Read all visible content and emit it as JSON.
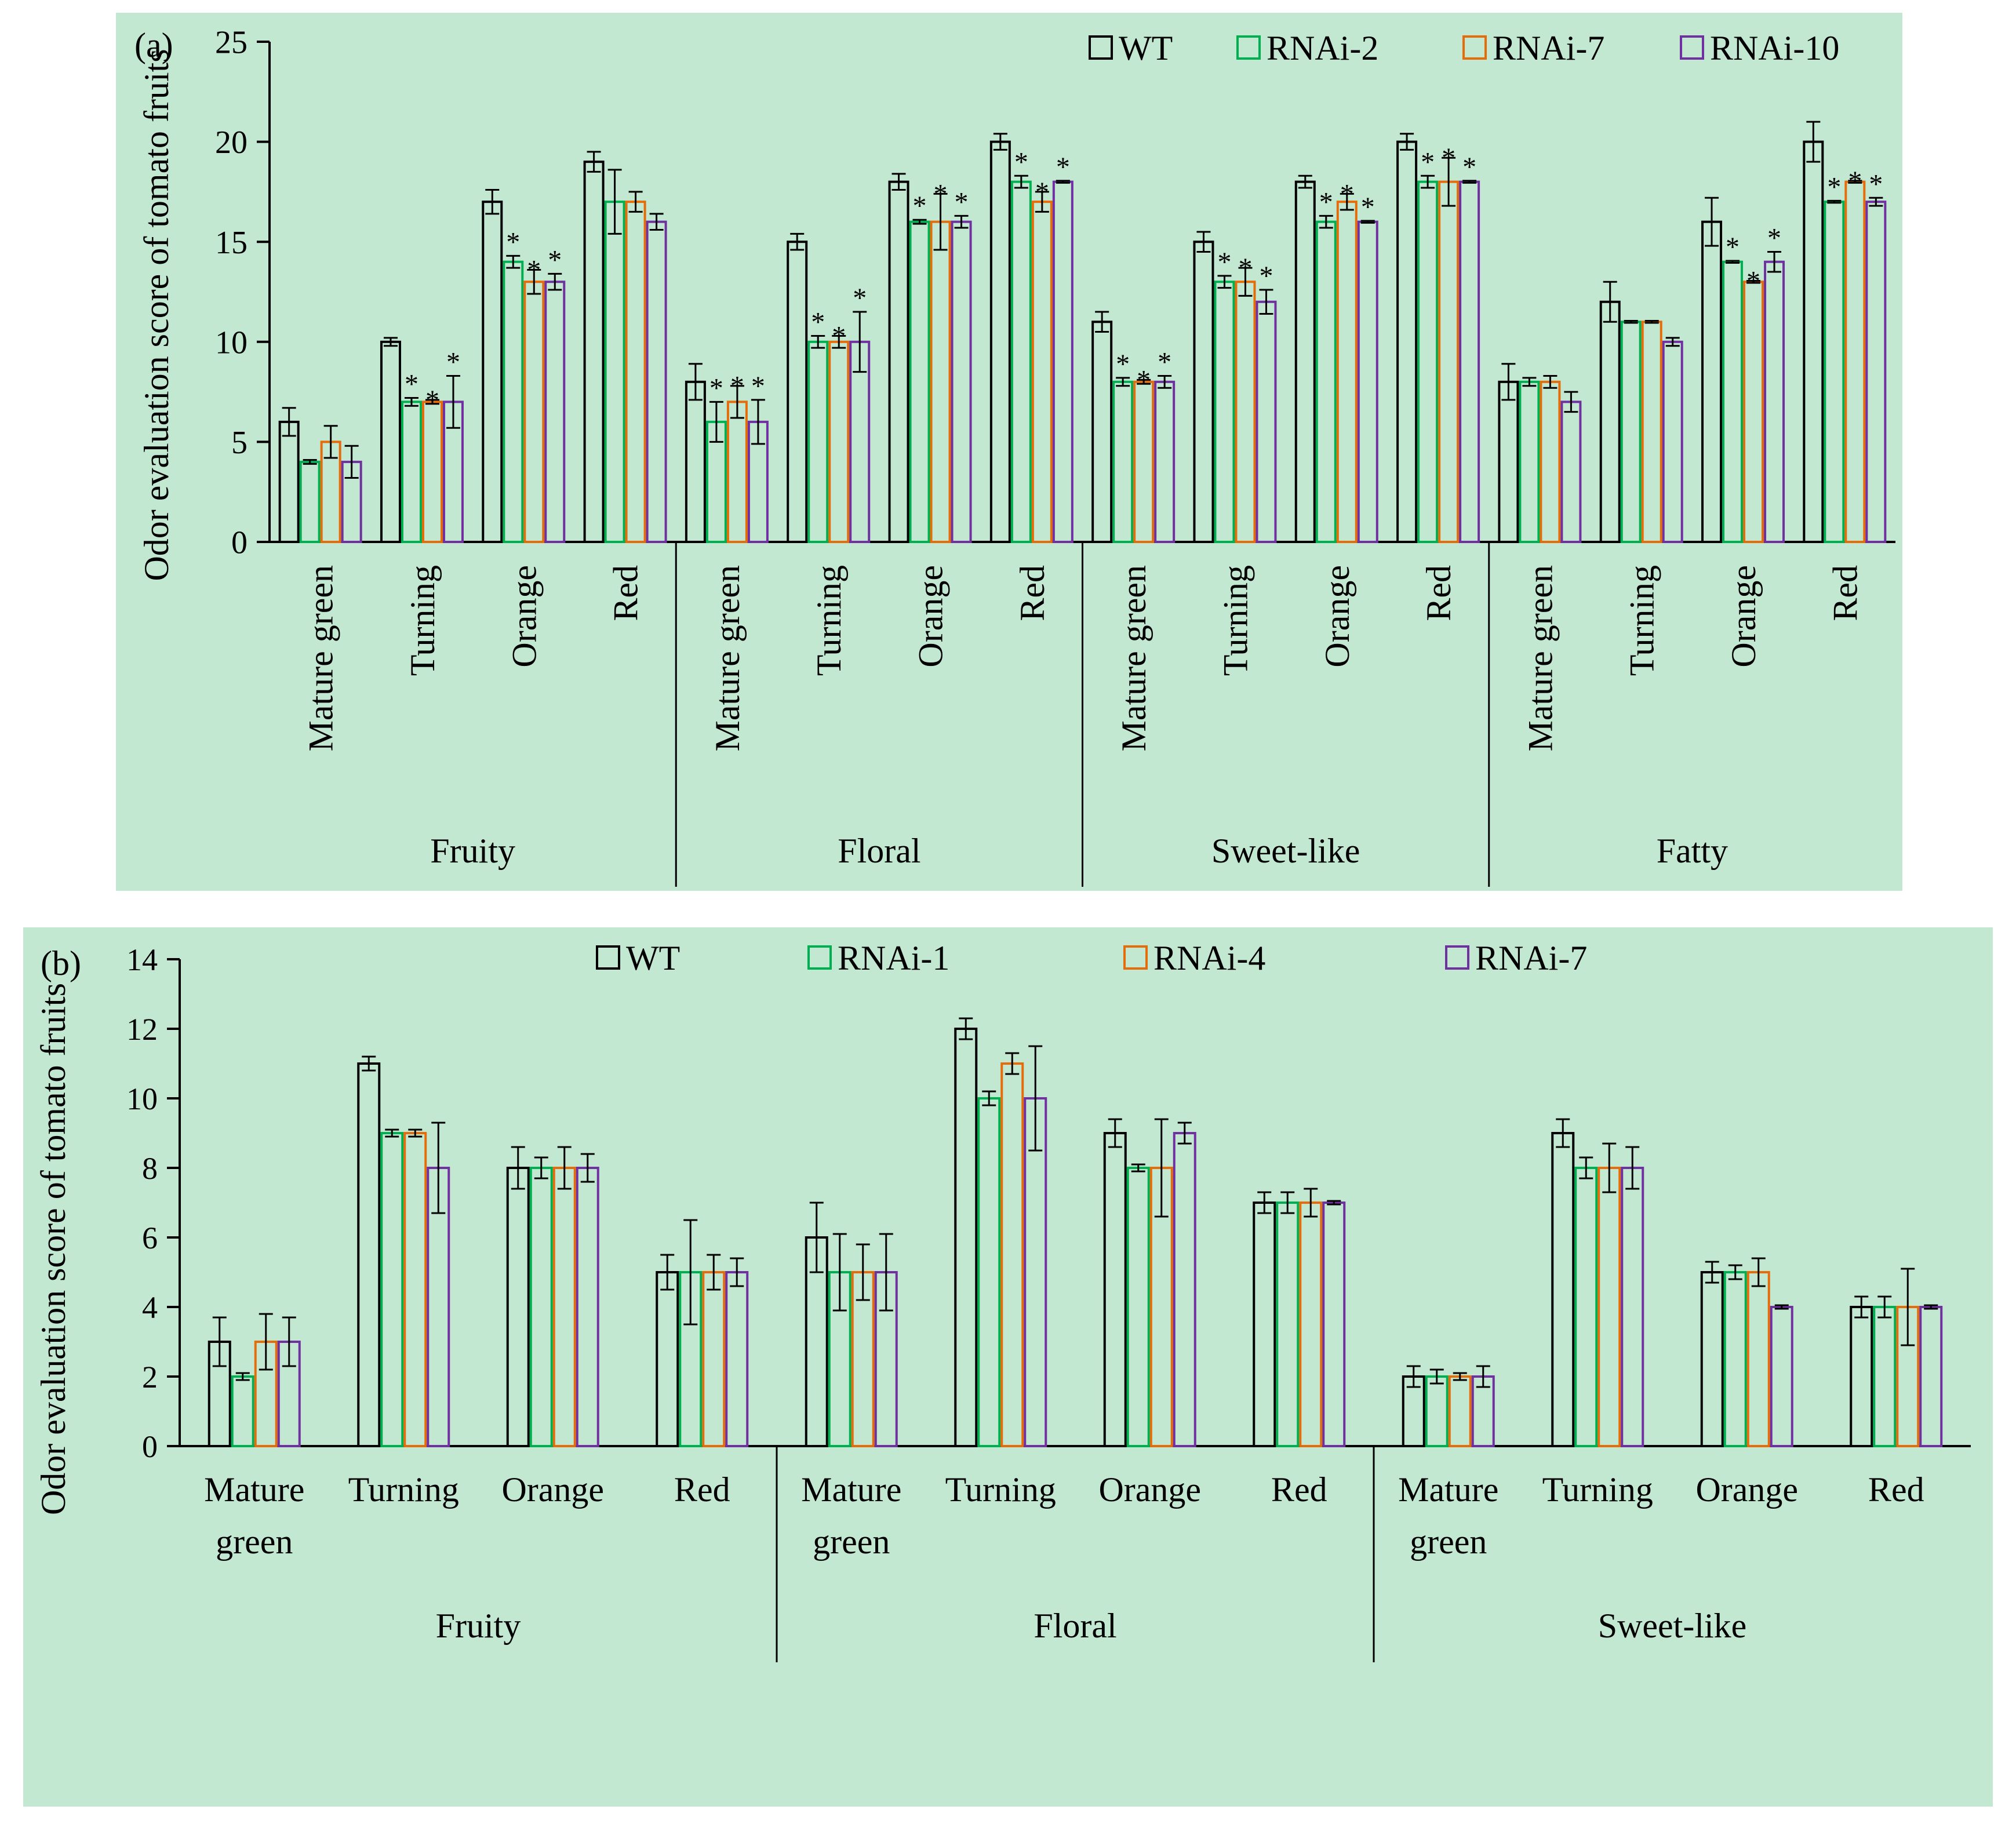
{
  "colors": {
    "background": "#c2e8d2",
    "page": "#ffffff",
    "axis": "#000000",
    "series": [
      "#000000",
      "#00b050",
      "#e46c0a",
      "#7030a0"
    ]
  },
  "chart_data": [
    {
      "type": "bar",
      "panel_label": "(a)",
      "ylabel": "Odor evaluation score of tomato fruits",
      "ylim": [
        0,
        25
      ],
      "yticks": [
        "0",
        "5",
        "10",
        "15",
        "20",
        "25"
      ],
      "ytick_values": [
        0,
        5,
        10,
        15,
        20,
        25
      ],
      "stage_label_orientation": "vertical",
      "legend_position": "top-right",
      "groups": [
        "Fruity",
        "Floral",
        "Sweet-like",
        "Fatty"
      ],
      "stages": [
        "Mature green",
        "Turning",
        "Orange",
        "Red"
      ],
      "series": [
        {
          "name": "WT",
          "color": "#000000",
          "values": [
            6,
            10,
            17,
            19,
            8,
            15,
            18,
            20,
            11,
            15,
            18,
            20,
            8,
            12,
            16,
            20
          ],
          "errors": [
            0.7,
            0.2,
            0.6,
            0.5,
            0.9,
            0.4,
            0.4,
            0.4,
            0.5,
            0.5,
            0.3,
            0.4,
            0.9,
            1.0,
            1.2,
            1.0
          ]
        },
        {
          "name": "RNAi-2",
          "color": "#00b050",
          "values": [
            4,
            7,
            14,
            17,
            6,
            10,
            16,
            18,
            8,
            13,
            16,
            18,
            8,
            11,
            14,
            17
          ],
          "errors": [
            0.1,
            0.2,
            0.3,
            1.6,
            1.0,
            0.3,
            0.1,
            0.3,
            0.2,
            0.3,
            0.3,
            0.3,
            0.2,
            0.05,
            0.05,
            0.05
          ],
          "significance": [
            "",
            "*",
            "*",
            "",
            "*",
            "*",
            "*",
            "*",
            "*",
            "*",
            "*",
            "*",
            "",
            "",
            "*",
            "*"
          ]
        },
        {
          "name": "RNAi-7",
          "color": "#e46c0a",
          "values": [
            5,
            7,
            13,
            17,
            7,
            10,
            16,
            17,
            8,
            13,
            17,
            18,
            8,
            11,
            13,
            18
          ],
          "errors": [
            0.8,
            0.1,
            0.6,
            0.5,
            0.8,
            0.3,
            1.4,
            0.5,
            0.1,
            0.7,
            0.4,
            1.2,
            0.3,
            0.05,
            0.05,
            0.05
          ],
          "significance": [
            "",
            "*",
            "*",
            "",
            "*",
            "*",
            "*",
            "*",
            "*",
            "*",
            "*",
            "*",
            "",
            "",
            "*",
            "*"
          ]
        },
        {
          "name": "RNAi-10",
          "color": "#7030a0",
          "values": [
            4,
            7,
            13,
            16,
            6,
            10,
            16,
            18,
            8,
            12,
            16,
            18,
            7,
            10,
            14,
            17
          ],
          "errors": [
            0.8,
            1.3,
            0.4,
            0.4,
            1.1,
            1.5,
            0.3,
            0.05,
            0.3,
            0.6,
            0.05,
            0.05,
            0.5,
            0.2,
            0.5,
            0.2
          ],
          "significance": [
            "",
            "*",
            "*",
            "",
            "*",
            "*",
            "*",
            "*",
            "*",
            "*",
            "*",
            "*",
            "",
            "",
            "*",
            "*"
          ]
        }
      ]
    },
    {
      "type": "bar",
      "panel_label": "(b)",
      "ylabel": "Odor evaluation score of tomato fruits",
      "ylim": [
        0,
        14
      ],
      "yticks": [
        "0",
        "2",
        "4",
        "6",
        "8",
        "10",
        "12",
        "14"
      ],
      "ytick_values": [
        0,
        2,
        4,
        6,
        8,
        10,
        12,
        14
      ],
      "stage_label_orientation": "horizontal",
      "legend_position": "top-center",
      "groups": [
        "Fruity",
        "Floral",
        "Sweet-like"
      ],
      "stages": [
        "Mature green",
        "Turning",
        "Orange",
        "Red"
      ],
      "series": [
        {
          "name": "WT",
          "color": "#000000",
          "values": [
            3,
            11,
            8,
            5,
            6,
            12,
            9,
            7,
            2,
            9,
            5,
            4
          ],
          "errors": [
            0.7,
            0.2,
            0.6,
            0.5,
            1.0,
            0.3,
            0.4,
            0.3,
            0.3,
            0.4,
            0.3,
            0.3
          ]
        },
        {
          "name": "RNAi-1",
          "color": "#00b050",
          "values": [
            2,
            9,
            8,
            5,
            5,
            10,
            8,
            7,
            2,
            8,
            5,
            4
          ],
          "errors": [
            0.1,
            0.1,
            0.3,
            1.5,
            1.1,
            0.2,
            0.1,
            0.3,
            0.2,
            0.3,
            0.2,
            0.3
          ]
        },
        {
          "name": "RNAi-4",
          "color": "#e46c0a",
          "values": [
            3,
            9,
            8,
            5,
            5,
            11,
            8,
            7,
            2,
            8,
            5,
            4
          ],
          "errors": [
            0.8,
            0.1,
            0.6,
            0.5,
            0.8,
            0.3,
            1.4,
            0.4,
            0.1,
            0.7,
            0.4,
            1.1
          ]
        },
        {
          "name": "RNAi-7",
          "color": "#7030a0",
          "values": [
            3,
            8,
            8,
            5,
            5,
            10,
            9,
            7,
            2,
            8,
            4,
            4
          ],
          "errors": [
            0.7,
            1.3,
            0.4,
            0.4,
            1.1,
            1.5,
            0.3,
            0.05,
            0.3,
            0.6,
            0.05,
            0.05
          ]
        }
      ]
    }
  ]
}
